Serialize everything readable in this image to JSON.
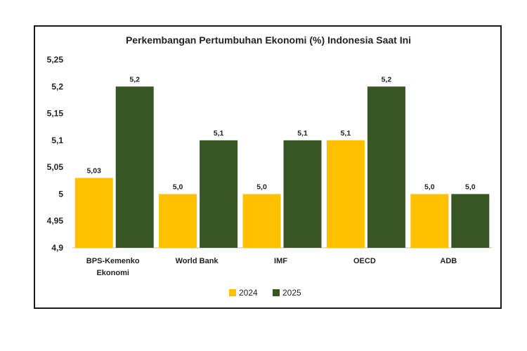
{
  "chart_data": {
    "type": "bar",
    "title": "Perkembangan Pertumbuhan Ekonomi (%) Indonesia Saat Ini",
    "categories": [
      [
        "BPS-Kemenko",
        "Ekonomi"
      ],
      [
        "World Bank"
      ],
      [
        "IMF"
      ],
      [
        "OECD"
      ],
      [
        "ADB"
      ]
    ],
    "series": [
      {
        "name": "2024",
        "color": "#FFC000",
        "values": [
          5.03,
          5.0,
          5.0,
          5.1,
          5.0
        ],
        "labels": [
          "5,03",
          "5,0",
          "5,0",
          "5,1",
          "5,0"
        ]
      },
      {
        "name": "2025",
        "color": "#375623",
        "values": [
          5.2,
          5.1,
          5.1,
          5.2,
          5.0
        ],
        "labels": [
          "5,2",
          "5,1",
          "5,1",
          "5,2",
          "5,0"
        ]
      }
    ],
    "ylim": [
      4.9,
      5.25
    ],
    "yticks": [
      4.9,
      4.95,
      5.0,
      5.05,
      5.1,
      5.15,
      5.2,
      5.25
    ],
    "ytick_labels": [
      "4,9",
      "4,95",
      "5",
      "5,05",
      "5,1",
      "5,15",
      "5,2",
      "5,25"
    ],
    "grid": false,
    "legend_position": "bottom"
  }
}
